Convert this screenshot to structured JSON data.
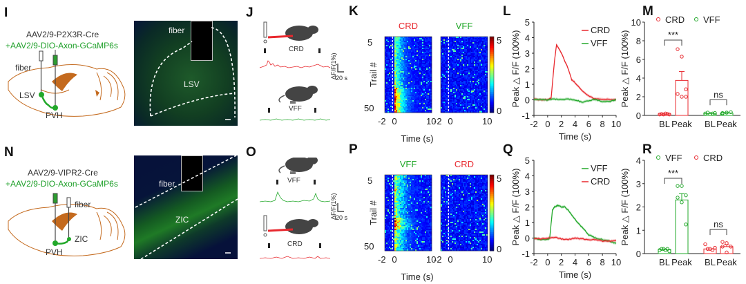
{
  "colors": {
    "crd": "#e8282e",
    "vff": "#22a82a",
    "brain": "#c46a1e",
    "heat_low": "#00008f",
    "heat_high": "#800000"
  },
  "panels": {
    "I": {
      "label": "I",
      "virus1": "AAV2/9-P2X3R-Cre",
      "virus2": "+AAV2/9-DIO-Axon-GCaMP6s",
      "fiber": "fiber",
      "region1": "LSV",
      "region2": "PVH"
    },
    "I_image": {
      "fiber": "fiber",
      "region": "LSV"
    },
    "J": {
      "label": "J",
      "stim1": "CRD",
      "stim2": "VFF",
      "scale_y": "ΔF/F(1%)",
      "scale_x": "20 s"
    },
    "N": {
      "label": "N",
      "virus1": "AAV2/9-VIPR2-Cre",
      "virus2": "+AAV2/9-DIO-Axon-GCaMP6s",
      "fiber": "fiber",
      "region1": "ZIC",
      "region2": "PVH"
    },
    "N_image": {
      "fiber": "fiber",
      "region": "ZIC"
    },
    "O": {
      "label": "O",
      "stim1": "VFF",
      "stim2": "CRD",
      "scale_y": "ΔF/F(1%)",
      "scale_x": "20 s"
    }
  },
  "chart_data": [
    {
      "id": "K",
      "type": "heatmap",
      "panel_label": "K",
      "subplots": [
        {
          "title": "CRD",
          "title_color": "crd",
          "response": "strong"
        },
        {
          "title": "VFF",
          "title_color": "vff",
          "response": "none"
        }
      ],
      "ylabel": "Trail #",
      "yticks": [
        "5",
        "50"
      ],
      "xticks_left": [
        "-2",
        "0",
        "10"
      ],
      "xticks_right": [
        "-2",
        "0",
        "10"
      ],
      "xlabel": "Time (s)",
      "xlim": [
        -2,
        10
      ],
      "trials": 55,
      "colorbar": {
        "min": 0,
        "max": 5,
        "ticks": [
          "0",
          "5"
        ]
      }
    },
    {
      "id": "L",
      "type": "line",
      "panel_label": "L",
      "title": "",
      "xlabel": "Time (s)",
      "ylabel": "Peak △ F/F (100%)",
      "xlim": [
        -2,
        10
      ],
      "ylim": [
        -1,
        5
      ],
      "xticks": [
        -2,
        0,
        2,
        4,
        6,
        8,
        10
      ],
      "yticks": [
        -1,
        0,
        1,
        2,
        3,
        4,
        5
      ],
      "legend": "top-right",
      "series": [
        {
          "name": "CRD",
          "color": "crd",
          "x": [
            -2,
            -1,
            0,
            0.5,
            1,
            1.3,
            2,
            3,
            3.5,
            4,
            5,
            6,
            7,
            8,
            9,
            10
          ],
          "y": [
            0.05,
            0,
            0,
            0.1,
            2.5,
            3.55,
            3.0,
            2.0,
            1.3,
            1.1,
            0.6,
            0.25,
            0.05,
            0.05,
            0.02,
            0.0
          ]
        },
        {
          "name": "VFF",
          "color": "vff",
          "x": [
            -2,
            -1,
            0,
            1,
            2,
            3,
            4,
            5,
            6,
            7,
            8,
            9,
            10
          ],
          "y": [
            0.05,
            0,
            0,
            0.05,
            0.02,
            0.05,
            0,
            -0.15,
            -0.05,
            0.02,
            -0.1,
            -0.1,
            0.0
          ]
        }
      ]
    },
    {
      "id": "M",
      "type": "bar",
      "panel_label": "M",
      "ylabel": "Peak △ F/F (100%)",
      "ylim": [
        0,
        10
      ],
      "yticks": [
        0,
        2,
        4,
        6,
        8,
        10
      ],
      "categories": [
        "BL",
        "Peak",
        "BL",
        "Peak"
      ],
      "legend": [
        "CRD",
        "VFF"
      ],
      "groups": [
        {
          "name": "CRD",
          "color": "crd",
          "bl_mean": 0.15,
          "peak_mean": 3.75,
          "peak_sem": 0.95,
          "bl_points": [
            0.1,
            0.15,
            0.1,
            0.2,
            0.15,
            0.1
          ],
          "peak_points": [
            7.1,
            6.3,
            2.8,
            2.3,
            2.0,
            2.0
          ],
          "significance": "***"
        },
        {
          "name": "VFF",
          "color": "vff",
          "bl_mean": 0.2,
          "peak_mean": 0.25,
          "peak_sem": 0.05,
          "bl_points": [
            0.2,
            0.3,
            0.15,
            0.2,
            0.25
          ],
          "peak_points": [
            0.2,
            0.3,
            0.35,
            0.25,
            0.3
          ],
          "significance": "ns"
        }
      ]
    },
    {
      "id": "P",
      "type": "heatmap",
      "panel_label": "P",
      "subplots": [
        {
          "title": "VFF",
          "title_color": "vff",
          "response": "moderate"
        },
        {
          "title": "CRD",
          "title_color": "crd",
          "response": "none"
        }
      ],
      "ylabel": "Trail #",
      "yticks": [
        "5",
        "50"
      ],
      "xticks_left": [
        "-2",
        "0",
        "10"
      ],
      "xticks_right": [
        "-2",
        "0",
        "10"
      ],
      "xlabel": "Time (s)",
      "xlim": [
        -2,
        10
      ],
      "trials": 55,
      "colorbar": {
        "min": 0,
        "max": 5,
        "ticks": [
          "0",
          "5"
        ]
      }
    },
    {
      "id": "Q",
      "type": "line",
      "panel_label": "Q",
      "xlabel": "Time (s)",
      "ylabel": "Peak △ F/F (100%)",
      "xlim": [
        -2,
        10
      ],
      "ylim": [
        -1,
        5
      ],
      "xticks": [
        -2,
        0,
        2,
        4,
        6,
        8,
        10
      ],
      "yticks": [
        -1,
        0,
        1,
        2,
        3,
        4,
        5
      ],
      "legend": "top-right",
      "series": [
        {
          "name": "VFF",
          "color": "vff",
          "x": [
            -2,
            -1,
            0,
            0.3,
            0.7,
            1,
            1.5,
            2,
            2.5,
            3,
            4,
            5,
            6,
            7,
            8,
            9,
            10
          ],
          "y": [
            0,
            -0.1,
            -0.1,
            0,
            1.8,
            2.0,
            2.1,
            2.0,
            2.0,
            1.8,
            1.2,
            0.7,
            0.2,
            0.0,
            -0.1,
            -0.2,
            -0.35
          ]
        },
        {
          "name": "CRD",
          "color": "crd",
          "x": [
            -2,
            -1,
            0,
            1,
            2,
            3,
            4,
            5,
            6,
            7,
            8,
            9,
            10
          ],
          "y": [
            0,
            -0.05,
            0,
            0.05,
            -0.05,
            -0.1,
            0,
            -0.05,
            -0.1,
            -0.1,
            -0.2,
            -0.2,
            -0.15
          ]
        }
      ]
    },
    {
      "id": "R",
      "type": "bar",
      "panel_label": "R",
      "ylabel": "Peak △ F/F (100%)",
      "ylim": [
        0,
        4
      ],
      "yticks": [
        0,
        1,
        2,
        3,
        4
      ],
      "categories": [
        "BL",
        "Peak",
        "BL",
        "Peak"
      ],
      "legend": [
        "VFF",
        "CRD"
      ],
      "groups": [
        {
          "name": "VFF",
          "color": "vff",
          "bl_mean": 0.18,
          "peak_mean": 2.3,
          "peak_sem": 0.27,
          "bl_points": [
            0.15,
            0.2,
            0.2,
            0.15,
            0.2,
            0.1
          ],
          "peak_points": [
            2.9,
            2.9,
            2.5,
            2.4,
            2.2,
            1.25
          ],
          "significance": "***"
        },
        {
          "name": "CRD",
          "color": "crd",
          "bl_mean": 0.2,
          "peak_mean": 0.3,
          "peak_sem": 0.08,
          "bl_points": [
            0.4,
            0.2,
            0.2,
            0.15,
            0.25
          ],
          "peak_points": [
            0.5,
            0.45,
            0.3,
            0.3,
            0.05
          ],
          "significance": "ns"
        }
      ]
    }
  ]
}
